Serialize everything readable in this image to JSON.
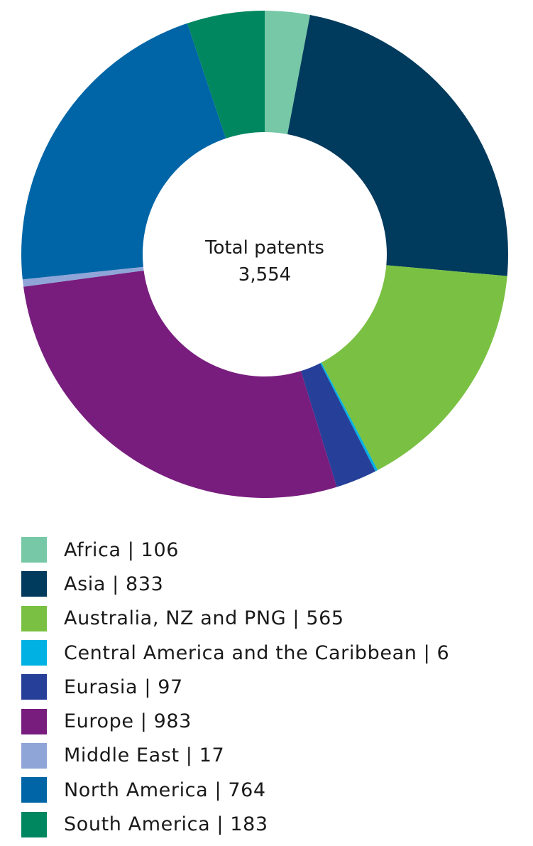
{
  "chart_data": {
    "type": "pie",
    "donut": true,
    "center_label": "Total patents",
    "center_value": "3,554",
    "categories": [
      "Africa",
      "Asia",
      "Australia, NZ and PNG",
      "Central America and the Caribbean",
      "Eurasia",
      "Europe",
      "Middle East",
      "North America",
      "South America"
    ],
    "values": [
      106,
      833,
      565,
      6,
      97,
      983,
      17,
      764,
      183
    ],
    "colors": [
      "#76c8a6",
      "#003a5d",
      "#7ac143",
      "#00b2e3",
      "#263f99",
      "#781d7e",
      "#8fa5d8",
      "#0065a6",
      "#00875f"
    ],
    "legend_labels": [
      "Africa | 106",
      "Asia | 833",
      "Australia, NZ and PNG | 565",
      "Central America and the Caribbean | 6",
      "Eurasia | 97",
      "Europe | 983",
      "Middle East | 17",
      "North America | 764",
      "South America | 183"
    ],
    "legend_position": "bottom-left"
  }
}
